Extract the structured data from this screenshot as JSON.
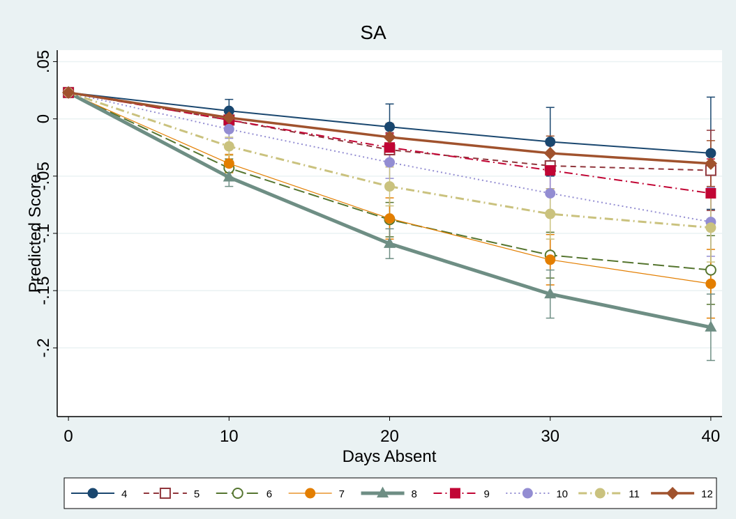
{
  "chart_data": {
    "type": "line",
    "title": "SA",
    "x_label": "Days Absent",
    "y_label": "Predicted Score",
    "x": [
      0,
      10,
      20,
      30,
      40
    ],
    "xlim": [
      -0.7,
      40.7
    ],
    "xticks": [
      0,
      10,
      20,
      30,
      40
    ],
    "ylim": [
      -0.26,
      0.06
    ],
    "yticks": [
      {
        "value": 0.05,
        "label": ".05"
      },
      0,
      {
        "value": -0.05,
        "label": "-.05"
      },
      {
        "value": -0.1,
        "label": "-.1"
      },
      {
        "value": -0.15,
        "label": "-.15"
      },
      {
        "value": -0.2,
        "label": "-.2"
      }
    ],
    "grid": true,
    "legend": "bottom",
    "series": [
      {
        "name": "4",
        "color": "#1a476f",
        "marker": "circle",
        "line": "solid",
        "width": 2,
        "values": [
          0.023,
          0.007,
          -0.007,
          -0.02,
          -0.03
        ],
        "errors": [
          0,
          0.01,
          0.02,
          0.03,
          0.049
        ]
      },
      {
        "name": "5",
        "color": "#90353b",
        "marker": "square-hollow",
        "line": "dash",
        "width": 2,
        "values": [
          0.023,
          -0.001,
          -0.027,
          -0.041,
          -0.045
        ],
        "errors": [
          0,
          0.008,
          0.015,
          0.02,
          0.035
        ]
      },
      {
        "name": "6",
        "color": "#55752f",
        "marker": "circle-hollow",
        "line": "longdash",
        "width": 2,
        "values": [
          0.023,
          -0.043,
          -0.088,
          -0.119,
          -0.132
        ],
        "errors": [
          0,
          0.008,
          0.015,
          0.02,
          0.03
        ]
      },
      {
        "name": "7",
        "color": "#e37e00",
        "marker": "circle",
        "line": "solid",
        "width": 1.2,
        "values": [
          0.023,
          -0.039,
          -0.087,
          -0.123,
          -0.144
        ],
        "errors": [
          0,
          0.008,
          0.018,
          0.022,
          0.03
        ]
      },
      {
        "name": "8",
        "color": "#6e8e84",
        "marker": "triangle",
        "line": "solid",
        "width": 5,
        "values": [
          0.023,
          -0.051,
          -0.109,
          -0.153,
          -0.182
        ],
        "errors": [
          0,
          0.008,
          0.013,
          0.021,
          0.029
        ]
      },
      {
        "name": "9",
        "color": "#c10534",
        "marker": "square",
        "line": "dashdot",
        "width": 2,
        "values": [
          0.023,
          -0.001,
          -0.025,
          -0.045,
          -0.065
        ],
        "errors": [
          0,
          0.006,
          0.012,
          0.022,
          0.03
        ]
      },
      {
        "name": "10",
        "color": "#938dd2",
        "marker": "circle",
        "line": "dot",
        "width": 2,
        "values": [
          0.023,
          -0.009,
          -0.038,
          -0.065,
          -0.09
        ],
        "errors": [
          0,
          0.008,
          0.014,
          0.02,
          0.03
        ]
      },
      {
        "name": "11",
        "color": "#cac27e",
        "marker": "circle",
        "line": "dashdot",
        "width": 3,
        "values": [
          0.023,
          -0.024,
          -0.059,
          -0.083,
          -0.095
        ],
        "errors": [
          0,
          0.008,
          0.017,
          0.022,
          0.03
        ]
      },
      {
        "name": "12",
        "color": "#a0522d",
        "marker": "diamond",
        "line": "solid",
        "width": 3.5,
        "values": [
          0.023,
          0.001,
          -0.016,
          -0.03,
          -0.039
        ],
        "errors": [
          0,
          0.007,
          0.012,
          0.015,
          0.02
        ]
      }
    ]
  }
}
